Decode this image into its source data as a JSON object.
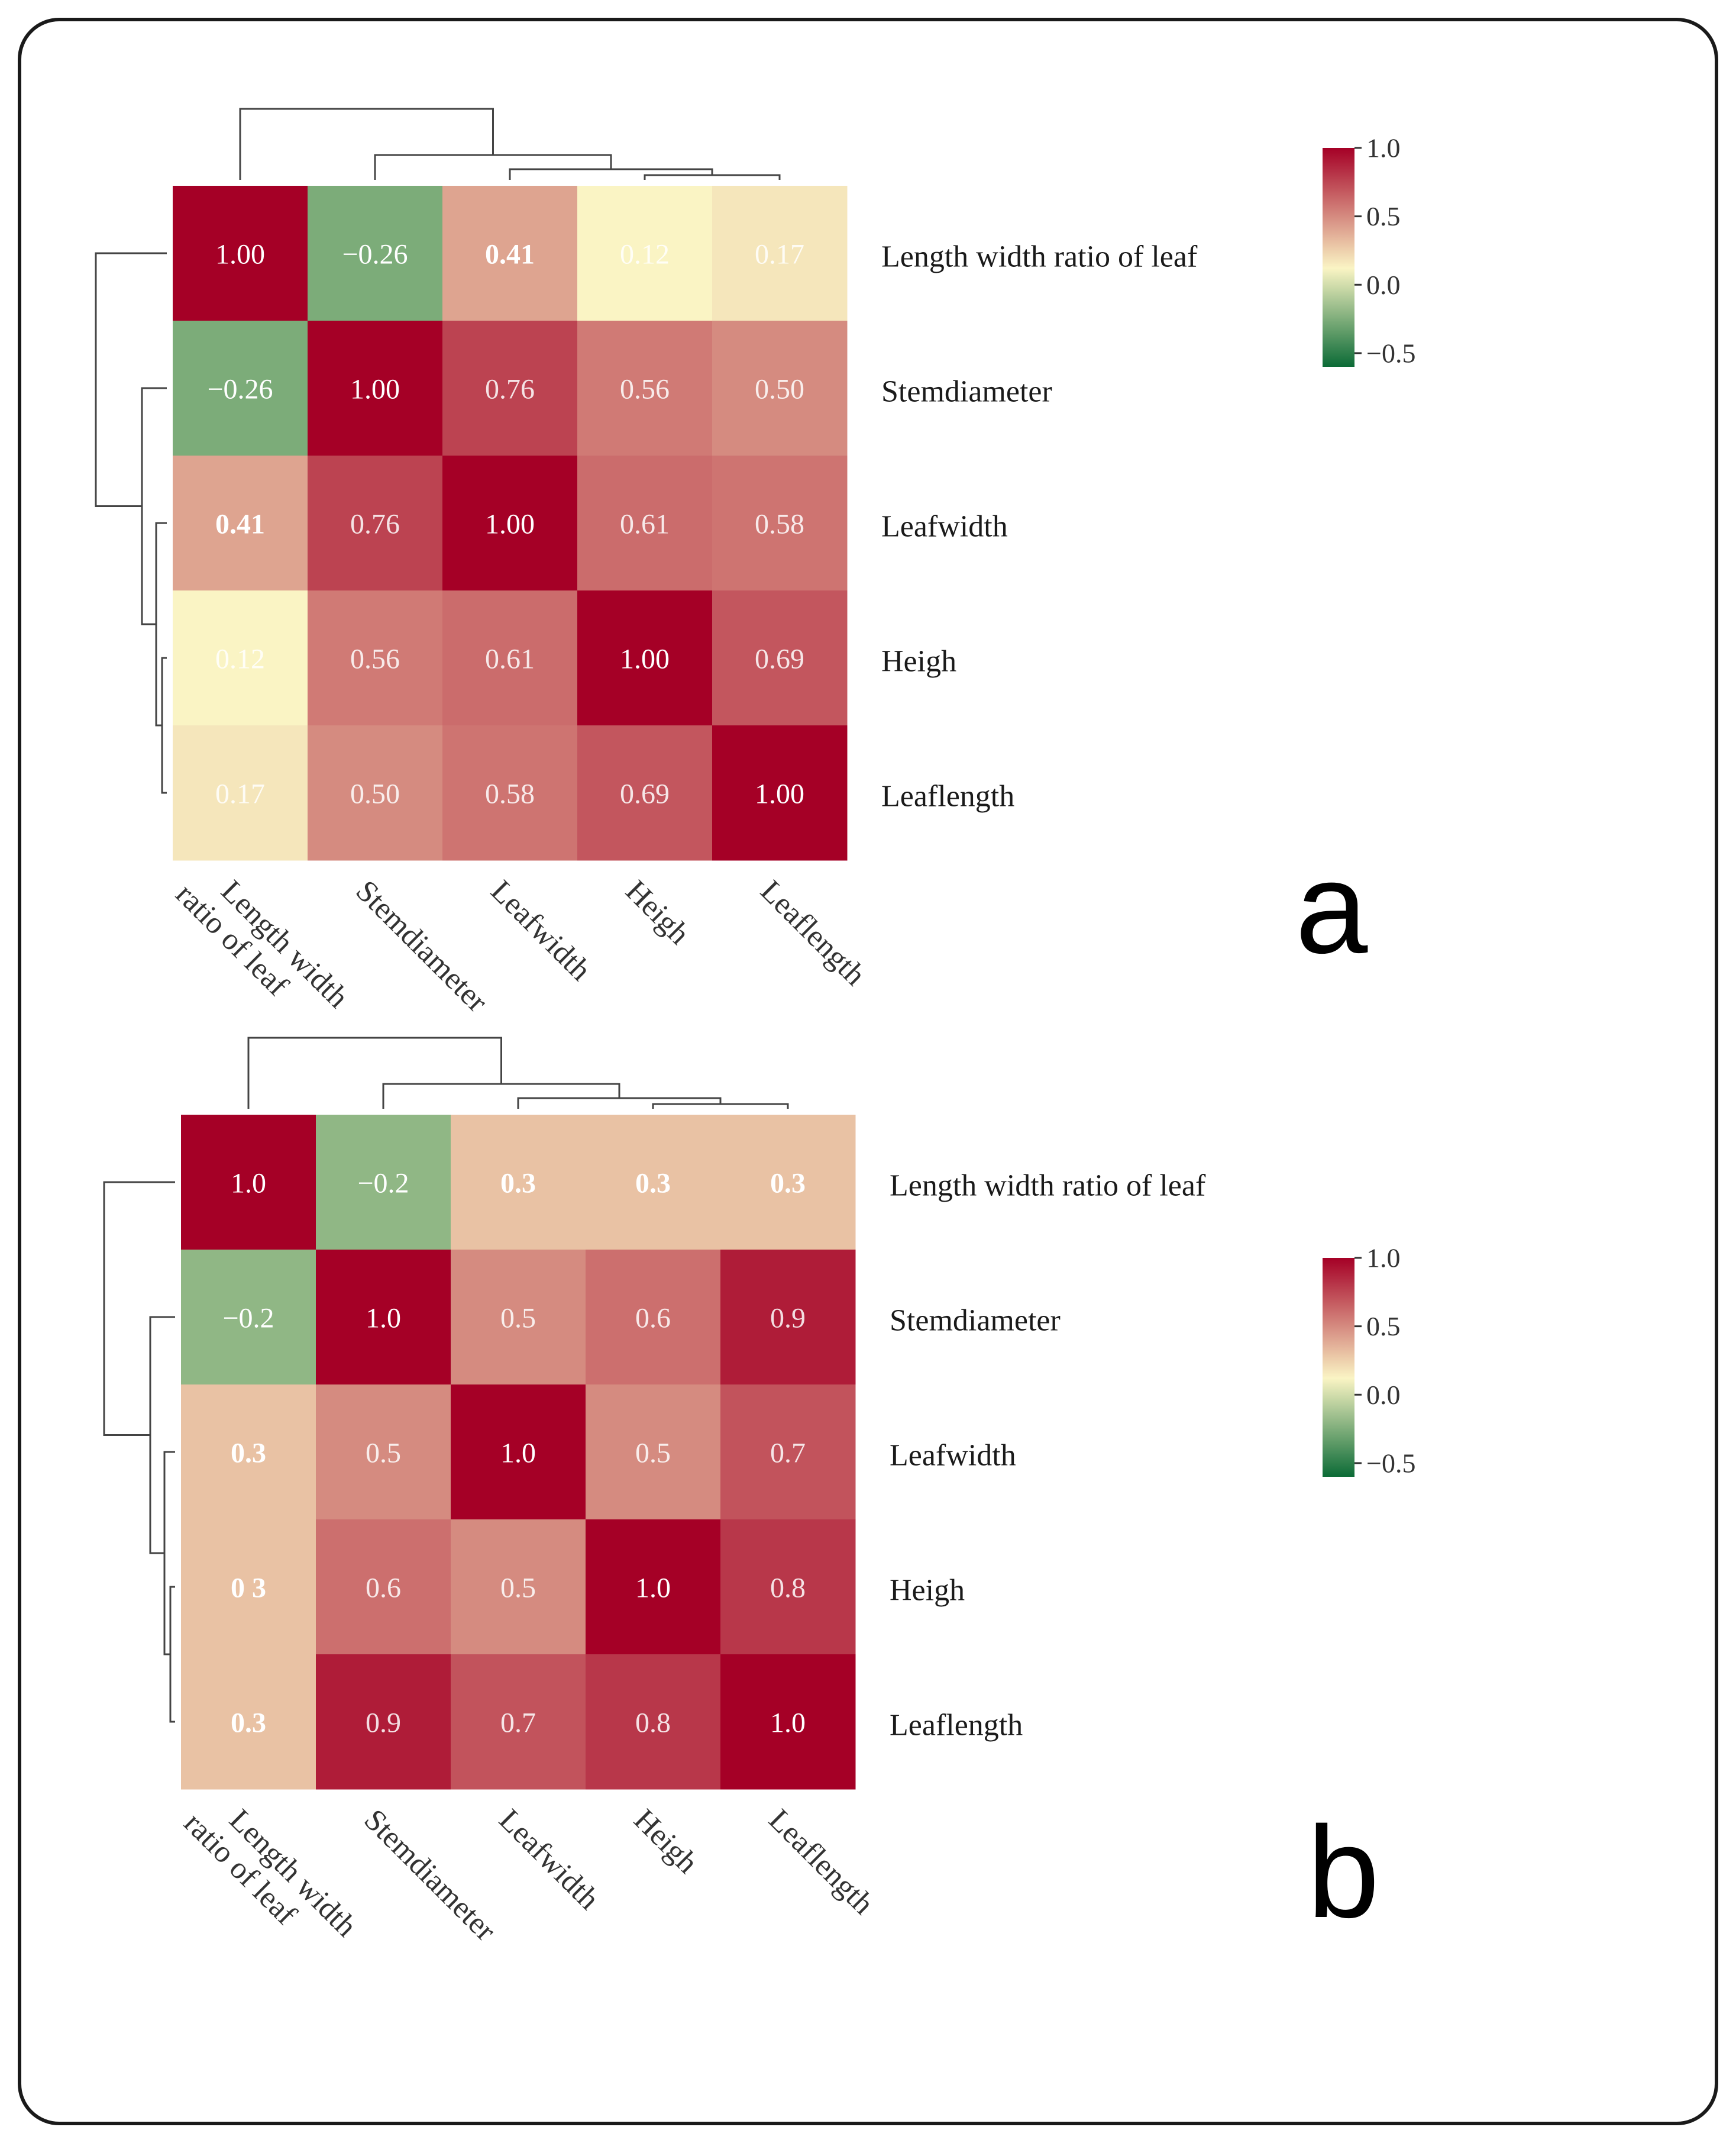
{
  "chart_data": [
    {
      "type": "heatmap",
      "panel_label": "a",
      "variables": [
        "Length width ratio of leaf",
        "Stemdiameter",
        "Leafwidth",
        "Heigh",
        "Leaflength"
      ],
      "col_labels": [
        [
          "Length width",
          "ratio of leaf"
        ],
        [
          "Stemdiameter"
        ],
        [
          "Leafwidth"
        ],
        [
          "Heigh"
        ],
        [
          "Leaflength"
        ]
      ],
      "matrix": [
        [
          1.0,
          -0.26,
          0.41,
          0.12,
          0.17
        ],
        [
          -0.26,
          1.0,
          0.76,
          0.56,
          0.5
        ],
        [
          0.41,
          0.76,
          1.0,
          0.61,
          0.58
        ],
        [
          0.12,
          0.56,
          0.61,
          1.0,
          0.69
        ],
        [
          0.17,
          0.5,
          0.58,
          0.69,
          1.0
        ]
      ],
      "cell_text": [
        [
          "1.00",
          "−0.26",
          "0.41",
          "0.12",
          "0.17"
        ],
        [
          "−0.26",
          "1.00",
          "0.76",
          "0.56",
          "0.50"
        ],
        [
          "0.41",
          "0.76",
          "1.00",
          "0.61",
          "0.58"
        ],
        [
          "0.12",
          "0.56",
          "0.61",
          "1.00",
          "0.69"
        ],
        [
          "0.17",
          "0.50",
          "0.58",
          "0.69",
          "1.00"
        ]
      ],
      "bold_cells": [
        [
          0,
          2
        ],
        [
          2,
          0
        ]
      ],
      "colorbar": {
        "min": -0.6,
        "max": 1.0,
        "ticks": [
          "1.0",
          "0.5",
          "0.0",
          "−0.5"
        ],
        "tick_values": [
          1.0,
          0.5,
          0.0,
          -0.5
        ]
      },
      "dendrogram": "hierarchical clustering on rows and columns",
      "colors": {
        "low": "#0b6b36",
        "mid": "#faf4c4",
        "high": "#a50026"
      }
    },
    {
      "type": "heatmap",
      "panel_label": "b",
      "variables": [
        "Length width ratio of leaf",
        "Stemdiameter",
        "Leafwidth",
        "Heigh",
        "Leaflength"
      ],
      "col_labels": [
        [
          "Length width",
          "ratio of leaf"
        ],
        [
          "Stemdiameter"
        ],
        [
          "Leafwidth"
        ],
        [
          "Heigh"
        ],
        [
          "Leaflength"
        ]
      ],
      "matrix": [
        [
          1.0,
          -0.2,
          0.3,
          0.3,
          0.3
        ],
        [
          -0.2,
          1.0,
          0.5,
          0.6,
          0.9
        ],
        [
          0.3,
          0.5,
          1.0,
          0.5,
          0.7
        ],
        [
          0.3,
          0.6,
          0.5,
          1.0,
          0.8
        ],
        [
          0.3,
          0.9,
          0.7,
          0.8,
          1.0
        ]
      ],
      "cell_text": [
        [
          "1.0",
          "−0.2",
          "0.3",
          "0.3",
          "0.3"
        ],
        [
          "−0.2",
          "1.0",
          "0.5",
          "0.6",
          "0.9"
        ],
        [
          "0.3",
          "0.5",
          "1.0",
          "0.5",
          "0.7"
        ],
        [
          "0 3",
          "0.6",
          "0.5",
          "1.0",
          "0.8"
        ],
        [
          "0.3",
          "0.9",
          "0.7",
          "0.8",
          "1.0"
        ]
      ],
      "bold_cells": [
        [
          0,
          2
        ],
        [
          0,
          3
        ],
        [
          0,
          4
        ],
        [
          2,
          0
        ],
        [
          3,
          0
        ],
        [
          4,
          0
        ]
      ],
      "colorbar": {
        "min": -0.6,
        "max": 1.0,
        "ticks": [
          "1.0",
          "0.5",
          "0.0",
          "−0.5"
        ],
        "tick_values": [
          1.0,
          0.5,
          0.0,
          -0.5
        ]
      },
      "dendrogram": "hierarchical clustering on rows and columns",
      "colors": {
        "low": "#0b6b36",
        "mid": "#faf4c4",
        "high": "#a50026"
      }
    }
  ]
}
